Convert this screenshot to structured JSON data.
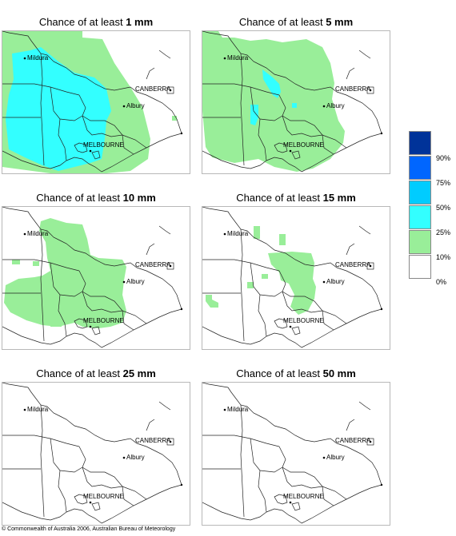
{
  "panels": [
    {
      "title_prefix": "Chance of at least ",
      "amount": "1 mm",
      "level": "1mm"
    },
    {
      "title_prefix": "Chance of at least ",
      "amount": "5 mm",
      "level": "5mm"
    },
    {
      "title_prefix": "Chance of at least ",
      "amount": "10 mm",
      "level": "10mm"
    },
    {
      "title_prefix": "Chance of at least ",
      "amount": "15 mm",
      "level": "15mm"
    },
    {
      "title_prefix": "Chance of at least ",
      "amount": "25 mm",
      "level": "25mm"
    },
    {
      "title_prefix": "Chance of at least ",
      "amount": "50 mm",
      "level": "50mm"
    }
  ],
  "map_labels": {
    "mildura": "Mildura",
    "canberra": "CANBERRA",
    "albury": "Albury",
    "melbourne": "MELBOURNE"
  },
  "legend": {
    "colors": [
      "#003399",
      "#0066ff",
      "#00ccff",
      "#33ffff",
      "#99ee99",
      "#ffffff"
    ],
    "labels": [
      "90%",
      "75%",
      "50%",
      "25%",
      "10%",
      "0%"
    ]
  },
  "colors": {
    "green": "#99ee99",
    "cyan": "#33ffff",
    "light_blue": "#00ccff"
  },
  "footer": "© Commonwealth of Australia 2006, Australian Bureau of Meteorology"
}
